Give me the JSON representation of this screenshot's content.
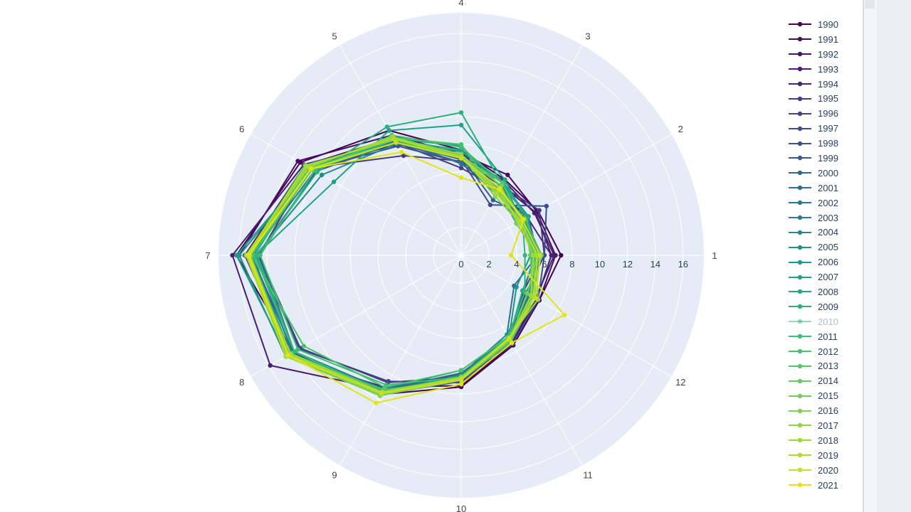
{
  "chart_data": {
    "type": "line",
    "subtype": "polar",
    "theta_labels": [
      "1",
      "2",
      "3",
      "4",
      "5",
      "6",
      "7",
      "8",
      "9",
      "10",
      "11",
      "12"
    ],
    "radial_ticks": [
      "0",
      "2",
      "4",
      "6",
      "8",
      "10",
      "12",
      "14",
      "16"
    ],
    "rrange": [
      0,
      17.5
    ],
    "grid": true,
    "legend_position": "right",
    "highlighted_legend_dimmed": "2010",
    "series": [
      {
        "name": "1990",
        "color": "#440154",
        "values": [
          7.2,
          6.4,
          6.3,
          7.6,
          10.4,
          13.4,
          16.2,
          14.0,
          11.6,
          9.5,
          7.5,
          6.5
        ]
      },
      {
        "name": "1991",
        "color": "#460b5e",
        "values": [
          6.8,
          6.3,
          6.7,
          7.3,
          10.0,
          13.6,
          16.0,
          14.6,
          11.0,
          9.4,
          7.4,
          6.5
        ]
      },
      {
        "name": "1992",
        "color": "#481467",
        "values": [
          6.5,
          6.2,
          5.8,
          7.1,
          9.8,
          13.0,
          15.6,
          14.3,
          11.4,
          8.5,
          7.4,
          6.3
        ]
      },
      {
        "name": "1993",
        "color": "#481d6f",
        "values": [
          6.7,
          6.1,
          6.2,
          7.2,
          9.5,
          13.1,
          16.5,
          15.9,
          11.2,
          8.8,
          7.3,
          6.2
        ]
      },
      {
        "name": "1994",
        "color": "#472575",
        "values": [
          6.5,
          5.5,
          5.4,
          7.5,
          9.2,
          12.8,
          15.4,
          14.2,
          11.3,
          8.6,
          7.0,
          6.3
        ]
      },
      {
        "name": "1995",
        "color": "#443983",
        "values": [
          6.0,
          6.5,
          5.8,
          6.8,
          8.3,
          12.6,
          14.6,
          13.4,
          10.6,
          8.8,
          6.8,
          5.4
        ]
      },
      {
        "name": "1996",
        "color": "#414487",
        "values": [
          5.3,
          5.0,
          5.5,
          6.3,
          9.4,
          12.1,
          14.7,
          13.5,
          10.5,
          9.2,
          7.1,
          5.2
        ]
      },
      {
        "name": "1997",
        "color": "#3e4c8a",
        "values": [
          6.0,
          7.1,
          4.2,
          6.9,
          9.5,
          12.4,
          15.1,
          14.0,
          11.2,
          9.0,
          7.4,
          6.4
        ]
      },
      {
        "name": "1998",
        "color": "#3b528b",
        "values": [
          5.8,
          5.3,
          5.1,
          6.7,
          9.1,
          12.4,
          15.6,
          14.2,
          11.6,
          9.1,
          7.0,
          5.2
        ]
      },
      {
        "name": "1999",
        "color": "#375b8d",
        "values": [
          5.5,
          5.6,
          4.6,
          7.1,
          9.6,
          12.7,
          15.4,
          14.4,
          11.6,
          8.9,
          7.0,
          5.8
        ]
      },
      {
        "name": "2000",
        "color": "#31688e",
        "values": [
          5.8,
          5.0,
          6.1,
          6.7,
          9.4,
          12.2,
          14.5,
          13.9,
          11.2,
          8.5,
          6.9,
          5.7
        ]
      },
      {
        "name": "2001",
        "color": "#2e6e8e",
        "values": [
          5.5,
          4.6,
          5.4,
          6.6,
          9.8,
          12.5,
          15.2,
          14.5,
          11.5,
          8.6,
          6.6,
          4.4
        ]
      },
      {
        "name": "2002",
        "color": "#2a788e",
        "values": [
          5.2,
          5.0,
          5.1,
          7.2,
          9.6,
          12.2,
          15.1,
          14.2,
          11.1,
          8.3,
          6.8,
          5.8
        ]
      },
      {
        "name": "2003",
        "color": "#277f8e",
        "values": [
          5.5,
          4.9,
          5.2,
          7.0,
          9.4,
          12.8,
          15.0,
          14.4,
          11.5,
          8.6,
          6.8,
          5.8
        ]
      },
      {
        "name": "2004",
        "color": "#23898e",
        "values": [
          5.6,
          5.2,
          5.8,
          7.2,
          9.3,
          11.6,
          14.8,
          14.1,
          11.6,
          8.8,
          7.0,
          5.6
        ]
      },
      {
        "name": "2005",
        "color": "#21918c",
        "values": [
          5.0,
          5.6,
          6.0,
          7.5,
          9.4,
          12.5,
          16.0,
          14.6,
          11.4,
          9.0,
          6.9,
          4.6
        ]
      },
      {
        "name": "2006",
        "color": "#1f9a8a",
        "values": [
          5.4,
          5.2,
          5.7,
          7.9,
          9.7,
          12.5,
          16.2,
          14.5,
          11.3,
          8.8,
          6.6,
          5.6
        ]
      },
      {
        "name": "2007",
        "color": "#1fa188",
        "values": [
          5.0,
          5.3,
          6.3,
          9.4,
          10.4,
          10.6,
          14.8,
          13.9,
          11.3,
          9.0,
          7.1,
          6.0
        ]
      },
      {
        "name": "2008",
        "color": "#22a884",
        "values": [
          5.4,
          5.5,
          6.1,
          7.6,
          9.6,
          12.4,
          15.2,
          14.2,
          11.3,
          8.7,
          6.9,
          5.1
        ]
      },
      {
        "name": "2009",
        "color": "#2ab07f",
        "values": [
          5.1,
          5.5,
          5.9,
          10.3,
          10.7,
          12.0,
          14.7,
          13.9,
          11.6,
          8.8,
          7.2,
          6.0
        ]
      },
      {
        "name": "2010",
        "color": "#35b779",
        "values": [
          4.6,
          5.1,
          5.5,
          7.3,
          9.6,
          12.6,
          14.9,
          13.9,
          11.4,
          8.9,
          6.8,
          5.3
        ]
      },
      {
        "name": "2011",
        "color": "#3fbc73",
        "values": [
          5.3,
          5.0,
          6.0,
          7.8,
          10.0,
          12.2,
          14.5,
          13.6,
          10.8,
          8.8,
          7.1,
          5.9
        ]
      },
      {
        "name": "2012",
        "color": "#4ac16d",
        "values": [
          5.8,
          5.3,
          5.2,
          8.0,
          9.8,
          12.4,
          15.1,
          13.1,
          11.0,
          8.3,
          6.8,
          5.9
        ]
      },
      {
        "name": "2013",
        "color": "#55c667",
        "values": [
          5.6,
          4.9,
          6.0,
          7.2,
          9.4,
          12.6,
          15.3,
          14.4,
          11.2,
          9.0,
          7.2,
          5.9
        ]
      },
      {
        "name": "2014",
        "color": "#63cb5f",
        "values": [
          5.0,
          5.2,
          5.4,
          7.3,
          9.6,
          13.0,
          15.4,
          14.2,
          11.5,
          8.9,
          7.1,
          5.9
        ]
      },
      {
        "name": "2015",
        "color": "#70cf57",
        "values": [
          5.5,
          4.6,
          5.8,
          7.2,
          9.4,
          12.4,
          15.3,
          14.6,
          11.7,
          9.0,
          7.0,
          5.5
        ]
      },
      {
        "name": "2016",
        "color": "#7ed34f",
        "values": [
          5.2,
          4.8,
          4.9,
          7.2,
          9.7,
          12.9,
          15.2,
          14.3,
          11.4,
          8.9,
          7.0,
          6.2
        ]
      },
      {
        "name": "2017",
        "color": "#8ed645",
        "values": [
          5.4,
          5.0,
          5.2,
          7.3,
          9.8,
          12.8,
          15.4,
          14.5,
          11.6,
          8.8,
          6.9,
          6.4
        ]
      },
      {
        "name": "2018",
        "color": "#9dd93b",
        "values": [
          5.2,
          4.8,
          5.4,
          7.0,
          9.9,
          12.7,
          15.5,
          14.2,
          11.4,
          8.8,
          7.0,
          5.8
        ]
      },
      {
        "name": "2019",
        "color": "#addc30",
        "values": [
          5.5,
          4.9,
          5.1,
          7.1,
          9.7,
          12.9,
          15.5,
          14.6,
          11.4,
          8.9,
          7.0,
          6.0
        ]
      },
      {
        "name": "2020",
        "color": "#c8e020",
        "values": [
          5.7,
          5.1,
          5.6,
          7.0,
          9.4,
          12.5,
          15.4,
          14.4,
          11.5,
          9.0,
          6.9,
          6.2
        ]
      },
      {
        "name": "2021",
        "color": "#e2e418",
        "values": [
          3.6,
          5.2,
          5.5,
          5.6,
          8.6,
          12.5,
          15.3,
          14.4,
          12.3,
          9.3,
          7.3,
          8.6
        ]
      }
    ]
  }
}
